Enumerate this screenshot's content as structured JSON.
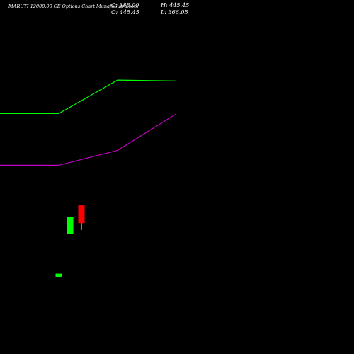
{
  "header": {
    "title": "MARUTI 12000.00  CE Options  Chart MunafaSutra.com",
    "close": "C: 388.00",
    "open": "O: 445.45",
    "high": "H: 445.45",
    "low": "L: 366.05"
  },
  "chart_data": {
    "type": "candlestick",
    "title": "MARUTI 12000.00  CE Options  Chart MunafaSutra.com",
    "ohlc_readout": {
      "close": 388.0,
      "open": 445.45,
      "high": 445.45,
      "low": 366.05
    },
    "x_tick_labels": [
      "",
      "",
      ""
    ],
    "candles": [
      {
        "index": 0,
        "open": 215,
        "high": 225,
        "low": 215,
        "close": 225,
        "color": "#00ff00"
      },
      {
        "index": 1,
        "open": 353,
        "high": 408,
        "low": 353,
        "close": 408,
        "color": "#00ff00"
      },
      {
        "index": 2,
        "open": 445.45,
        "high": 445.45,
        "low": 366.05,
        "close": 388.0,
        "color": "#ff0000"
      }
    ],
    "series": [
      {
        "color": "#00ff00",
        "x": [
          -1,
          0,
          1,
          2
        ],
        "values": [
          742,
          742,
          850,
          847
        ]
      },
      {
        "color": "#c000c0",
        "x": [
          -1,
          0,
          1,
          2
        ],
        "values": [
          575,
          575,
          623,
          741
        ]
      }
    ],
    "x_range": [
      -1,
      2
    ],
    "y_range": [
      0,
      930
    ],
    "grid": false,
    "legend": "none",
    "background": "#000000"
  }
}
